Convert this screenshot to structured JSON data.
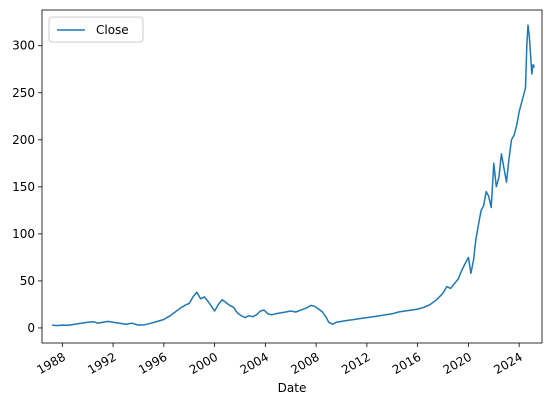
{
  "chart_data": {
    "type": "line",
    "xlabel": "Date",
    "ylabel": "",
    "title": "",
    "grid": false,
    "legend_position": "top-left",
    "x_ticks": [
      "1988",
      "1992",
      "1996",
      "2000",
      "2004",
      "2008",
      "2012",
      "2016",
      "2020",
      "2024"
    ],
    "y_ticks": [
      0,
      50,
      100,
      150,
      200,
      250,
      300
    ],
    "xlim": [
      1986.4,
      2025.8
    ],
    "ylim": [
      -16,
      338
    ],
    "series": [
      {
        "name": "Close",
        "color": "#1f77b4",
        "x": [
          1987.2,
          1987.6,
          1988.0,
          1988.5,
          1989.0,
          1989.5,
          1990.0,
          1990.5,
          1990.8,
          1991.2,
          1991.6,
          1992.0,
          1992.5,
          1993.0,
          1993.5,
          1994.0,
          1994.5,
          1995.0,
          1995.5,
          1996.0,
          1996.5,
          1997.0,
          1997.4,
          1997.8,
          1998.0,
          1998.3,
          1998.6,
          1998.9,
          1999.2,
          1999.5,
          1999.8,
          2000.0,
          2000.3,
          2000.6,
          2000.9,
          2001.2,
          2001.5,
          2001.8,
          2002.1,
          2002.4,
          2002.7,
          2003.0,
          2003.3,
          2003.6,
          2003.9,
          2004.2,
          2004.5,
          2004.8,
          2005.2,
          2005.6,
          2006.0,
          2006.4,
          2006.8,
          2007.2,
          2007.6,
          2007.9,
          2008.2,
          2008.5,
          2008.8,
          2009.0,
          2009.3,
          2009.6,
          2010.0,
          2010.5,
          2011.0,
          2011.5,
          2012.0,
          2012.5,
          2013.0,
          2013.5,
          2014.0,
          2014.5,
          2015.0,
          2015.5,
          2016.0,
          2016.5,
          2017.0,
          2017.5,
          2018.0,
          2018.3,
          2018.6,
          2018.9,
          2019.2,
          2019.5,
          2019.8,
          2020.0,
          2020.2,
          2020.4,
          2020.6,
          2020.8,
          2021.0,
          2021.2,
          2021.4,
          2021.6,
          2021.8,
          2022.0,
          2022.2,
          2022.4,
          2022.6,
          2022.8,
          2023.0,
          2023.2,
          2023.4,
          2023.6,
          2023.8,
          2024.0,
          2024.2,
          2024.4,
          2024.5,
          2024.6,
          2024.7,
          2024.8,
          2024.9,
          2025.0,
          2025.1,
          2025.2
        ],
        "y": [
          3,
          2.5,
          3,
          2.8,
          4,
          5,
          6,
          6.5,
          5,
          6,
          7,
          6,
          5,
          4,
          5,
          3,
          3.5,
          5,
          7,
          9,
          13,
          18,
          22,
          25,
          26,
          33,
          38,
          31,
          33,
          28,
          22,
          18,
          25,
          30,
          27,
          24,
          22,
          16,
          13,
          11,
          13,
          12,
          14,
          18,
          19,
          15,
          14,
          15,
          16,
          17,
          18,
          17,
          19,
          21,
          24,
          23,
          20,
          17,
          11,
          6,
          4,
          6,
          7,
          8,
          9,
          10,
          11,
          12,
          13,
          14,
          15,
          17,
          18,
          19,
          20,
          22,
          25,
          30,
          37,
          44,
          42,
          47,
          52,
          62,
          70,
          75,
          58,
          72,
          95,
          110,
          125,
          130,
          145,
          140,
          128,
          175,
          150,
          160,
          185,
          170,
          155,
          180,
          200,
          205,
          215,
          230,
          240,
          250,
          255,
          300,
          322,
          310,
          290,
          270,
          280,
          277
        ]
      }
    ]
  }
}
